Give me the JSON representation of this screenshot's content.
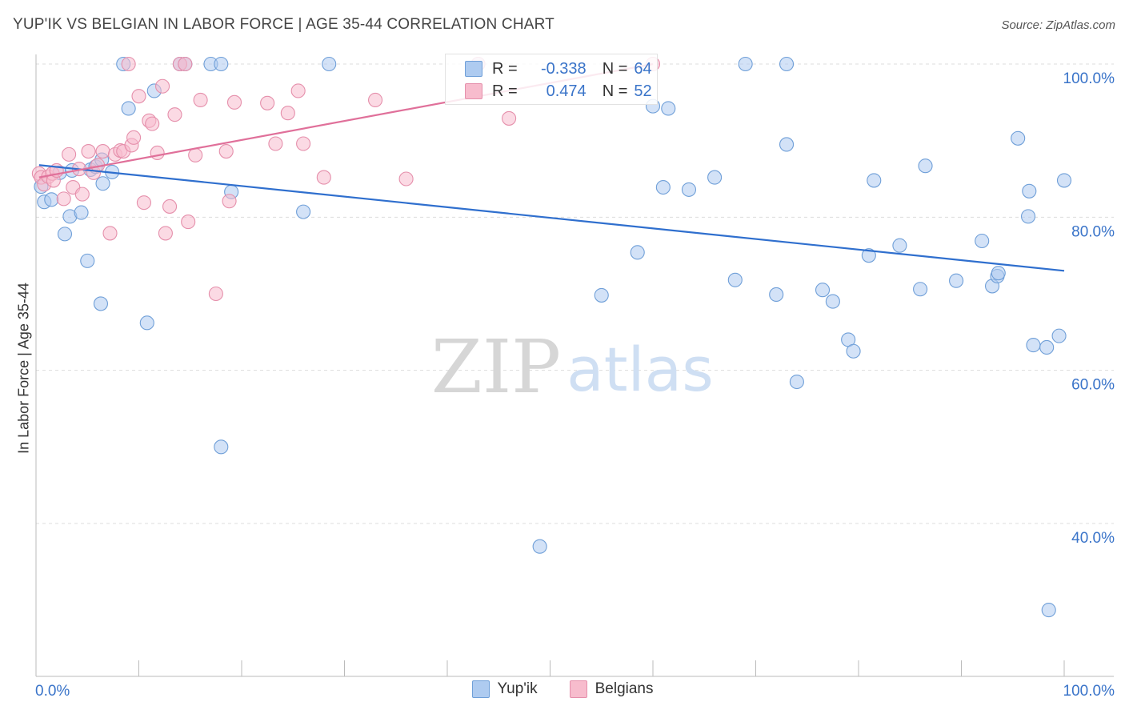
{
  "title": "YUP'IK VS BELGIAN IN LABOR FORCE | AGE 35-44 CORRELATION CHART",
  "source": "Source: ZipAtlas.com",
  "watermark": {
    "zip": "ZIP",
    "atlas": "atlas"
  },
  "legend": {
    "r_label": "R =",
    "n_label": "N =",
    "rows": [
      {
        "name": "Yup'ik",
        "r": "-0.338",
        "n": "64",
        "color": "#aecbf0",
        "edge": "#6f9fd8"
      },
      {
        "name": "Belgians",
        "r": "0.474",
        "n": "52",
        "color": "#f7bccd",
        "edge": "#e58fab"
      }
    ]
  },
  "chart_data": {
    "type": "scatter",
    "title": "YUP'IK VS BELGIAN IN LABOR FORCE | AGE 35-44 CORRELATION CHART",
    "xlabel": "",
    "ylabel": "In Labor Force | Age 35-44",
    "xlim": [
      0,
      100
    ],
    "ylim": [
      20,
      100
    ],
    "x_tick_labels": [
      "0.0%",
      "100.0%"
    ],
    "y_ticks": [
      {
        "value": 100,
        "label": "100.0%"
      },
      {
        "value": 80,
        "label": "80.0%"
      },
      {
        "value": 60,
        "label": "60.0%"
      },
      {
        "value": 40,
        "label": "40.0%"
      }
    ],
    "grid": true,
    "series": [
      {
        "name": "Yup'ik",
        "color": "#aecbf0",
        "edge": "#6f9fd8",
        "line_color": "#2f6fce",
        "trend": [
          [
            0.3,
            86.8
          ],
          [
            100,
            73.0
          ]
        ],
        "points": [
          [
            8.5,
            100
          ],
          [
            14,
            100
          ],
          [
            14.5,
            100
          ],
          [
            17,
            100
          ],
          [
            18,
            100
          ],
          [
            28.5,
            100
          ],
          [
            43,
            100
          ],
          [
            69,
            100
          ],
          [
            73,
            100
          ],
          [
            9,
            94.2
          ],
          [
            11.5,
            96.5
          ],
          [
            60,
            94.5
          ],
          [
            61.5,
            94.2
          ],
          [
            0.5,
            84
          ],
          [
            0.8,
            82
          ],
          [
            1.5,
            82.3
          ],
          [
            2.3,
            85.8
          ],
          [
            2.8,
            77.8
          ],
          [
            3.3,
            80.1
          ],
          [
            3.5,
            86.1
          ],
          [
            4.4,
            80.6
          ],
          [
            5,
            74.3
          ],
          [
            5.3,
            86.2
          ],
          [
            5.8,
            86.6
          ],
          [
            6.4,
            87.5
          ],
          [
            6.3,
            68.7
          ],
          [
            6.5,
            84.4
          ],
          [
            7.4,
            85.9
          ],
          [
            10.8,
            66.2
          ],
          [
            19,
            83.3
          ],
          [
            18,
            50
          ],
          [
            26,
            80.7
          ],
          [
            49,
            37
          ],
          [
            55,
            69.8
          ],
          [
            58.5,
            75.4
          ],
          [
            61,
            83.9
          ],
          [
            63.5,
            83.6
          ],
          [
            66,
            85.2
          ],
          [
            68,
            71.8
          ],
          [
            72,
            69.9
          ],
          [
            73,
            89.5
          ],
          [
            74,
            58.5
          ],
          [
            76.5,
            70.5
          ],
          [
            77.5,
            69
          ],
          [
            79,
            64
          ],
          [
            79.5,
            62.5
          ],
          [
            81,
            75
          ],
          [
            81.5,
            84.8
          ],
          [
            84,
            76.3
          ],
          [
            86,
            70.6
          ],
          [
            86.5,
            86.7
          ],
          [
            89.5,
            71.7
          ],
          [
            92,
            76.9
          ],
          [
            93,
            71
          ],
          [
            93.5,
            72.3
          ],
          [
            93.6,
            72.7
          ],
          [
            95.5,
            90.3
          ],
          [
            96.5,
            80.1
          ],
          [
            96.6,
            83.4
          ],
          [
            97,
            63.3
          ],
          [
            98.3,
            63
          ],
          [
            98.5,
            28.7
          ],
          [
            99.5,
            64.5
          ],
          [
            100,
            84.8
          ]
        ]
      },
      {
        "name": "Belgians",
        "color": "#f7bccd",
        "edge": "#e58fab",
        "line_color": "#e0709a",
        "trend": [
          [
            0.3,
            85.2
          ],
          [
            60,
            100
          ]
        ],
        "points": [
          [
            0.3,
            85.7
          ],
          [
            0.5,
            85.2
          ],
          [
            0.8,
            84.3
          ],
          [
            1.2,
            85.3
          ],
          [
            1.6,
            85.7
          ],
          [
            1.7,
            84.8
          ],
          [
            2,
            86.1
          ],
          [
            2.7,
            82.4
          ],
          [
            3.2,
            88.2
          ],
          [
            3.6,
            83.9
          ],
          [
            4.2,
            86.3
          ],
          [
            4.5,
            83
          ],
          [
            5.1,
            88.6
          ],
          [
            5.6,
            85.8
          ],
          [
            6,
            86.8
          ],
          [
            6.5,
            88.6
          ],
          [
            7.2,
            77.9
          ],
          [
            7.7,
            88.2
          ],
          [
            8.2,
            88.7
          ],
          [
            8.5,
            88.6
          ],
          [
            9,
            100
          ],
          [
            9.3,
            89.4
          ],
          [
            9.5,
            90.4
          ],
          [
            10,
            95.8
          ],
          [
            10.5,
            81.9
          ],
          [
            11,
            92.6
          ],
          [
            11.3,
            92.2
          ],
          [
            11.8,
            88.4
          ],
          [
            12.3,
            97.1
          ],
          [
            12.6,
            77.9
          ],
          [
            13,
            81.4
          ],
          [
            13.5,
            93.4
          ],
          [
            14,
            100
          ],
          [
            14.5,
            100
          ],
          [
            14.8,
            79.4
          ],
          [
            15.5,
            88.1
          ],
          [
            16,
            95.3
          ],
          [
            17.5,
            70
          ],
          [
            18.5,
            88.6
          ],
          [
            18.8,
            82.1
          ],
          [
            19.3,
            95
          ],
          [
            22.5,
            94.9
          ],
          [
            23.3,
            89.6
          ],
          [
            24.5,
            93.6
          ],
          [
            25.5,
            96.5
          ],
          [
            26,
            89.6
          ],
          [
            28,
            85.2
          ],
          [
            33,
            95.3
          ],
          [
            36,
            85
          ],
          [
            43,
            100
          ],
          [
            46,
            92.9
          ],
          [
            60,
            100
          ]
        ]
      }
    ]
  }
}
